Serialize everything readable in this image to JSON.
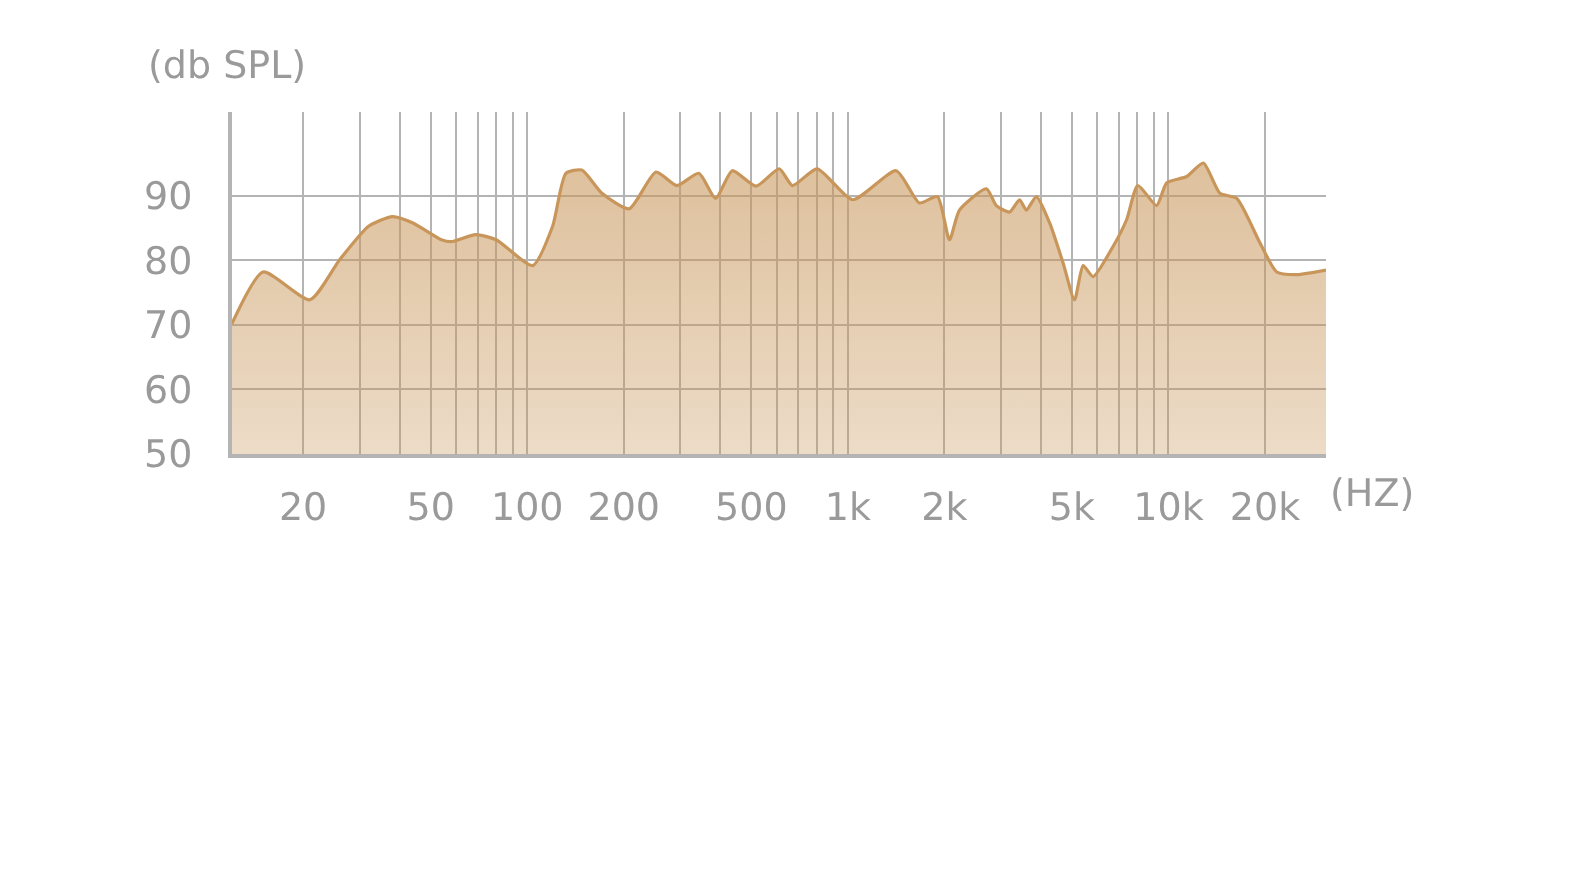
{
  "chart_data": {
    "type": "area",
    "xlabel": "(HZ)",
    "ylabel": "(db SPL)",
    "log": "x",
    "grid": true,
    "xlim": [
      12,
      31000
    ],
    "ylim": [
      50,
      103
    ],
    "xticks": [
      20,
      {
        "value": 30,
        "label": null
      },
      {
        "value": 40,
        "label": null
      },
      50,
      {
        "value": 60,
        "label": null
      },
      {
        "value": 70,
        "label": null
      },
      {
        "value": 80,
        "label": null
      },
      {
        "value": 90,
        "label": null
      },
      100,
      200,
      {
        "value": 300,
        "label": null
      },
      {
        "value": 400,
        "label": null
      },
      500,
      {
        "value": 600,
        "label": null
      },
      {
        "value": 700,
        "label": null
      },
      {
        "value": 800,
        "label": null
      },
      {
        "value": 900,
        "label": null
      },
      {
        "value": 1000,
        "label": "1k"
      },
      {
        "value": 2000,
        "label": "2k"
      },
      {
        "value": 3000,
        "label": null
      },
      {
        "value": 4000,
        "label": null
      },
      {
        "value": 5000,
        "label": "5k"
      },
      {
        "value": 6000,
        "label": null
      },
      {
        "value": 7000,
        "label": null
      },
      {
        "value": 8000,
        "label": null
      },
      {
        "value": 9000,
        "label": null
      },
      {
        "value": 10000,
        "label": "10k"
      },
      {
        "value": 20000,
        "label": "20k"
      }
    ],
    "yticks": [
      50,
      60,
      70,
      80,
      90
    ],
    "series": [
      {
        "color": "#c8965a",
        "x": [
          12,
          15,
          21,
          26,
          32,
          38,
          44,
          54,
          58,
          69,
          80,
          104,
          120,
          132,
          148,
          171,
          208,
          252,
          293,
          343,
          387,
          436,
          517,
          611,
          672,
          802,
          1035,
          1415,
          1672,
          1903,
          2075,
          2229,
          2704,
          2905,
          3195,
          3433,
          3605,
          3874,
          4260,
          4692,
          5093,
          5418,
          5821,
          6723,
          7403,
          8025,
          9187,
          9871,
          11400,
          12850,
          14470,
          16340,
          19300,
          21780,
          25150,
          31000
        ],
        "values": [
          70.2,
          78.2,
          73.9,
          80.1,
          85.3,
          86.8,
          85.8,
          83.2,
          82.9,
          84.0,
          83.2,
          79.2,
          85.3,
          93.5,
          94.0,
          90.4,
          88.0,
          93.7,
          91.6,
          93.5,
          89.6,
          93.9,
          91.5,
          94.2,
          91.6,
          94.2,
          89.4,
          93.9,
          88.9,
          89.9,
          83.2,
          87.8,
          91.1,
          88.5,
          87.5,
          89.4,
          87.8,
          89.9,
          85.8,
          79.6,
          73.9,
          79.2,
          77.5,
          82.2,
          86.3,
          91.6,
          88.5,
          92.0,
          93.0,
          95.1,
          90.4,
          89.6,
          82.7,
          78.2,
          77.8,
          78.5
        ]
      }
    ]
  }
}
